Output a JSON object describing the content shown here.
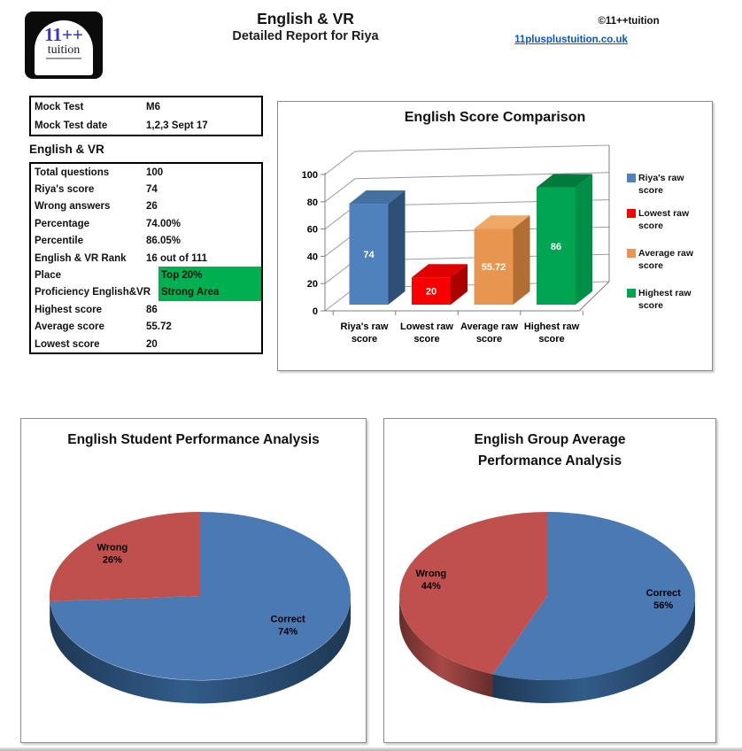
{
  "header": {
    "logo": {
      "line1": "11++",
      "line2": "tuition"
    },
    "title": "English & VR",
    "subtitle": "Detailed Report for Riya",
    "copyright": "©11++tuition",
    "website": "11plusplustuition.co.uk"
  },
  "mock_info": {
    "rows": [
      {
        "label": "Mock Test",
        "value": "M6",
        "highlight": false
      },
      {
        "label": "Mock Test date",
        "value": "1,2,3 Sept 17",
        "highlight": false
      }
    ]
  },
  "stats": {
    "section_title": "English & VR",
    "highlight_color": "#00B050",
    "rows": [
      {
        "label": "Total questions",
        "value": "100",
        "highlight": false
      },
      {
        "label": "Riya's score",
        "value": "74",
        "highlight": false
      },
      {
        "label": "Wrong answers",
        "value": "26",
        "highlight": false
      },
      {
        "label": "Percentage",
        "value": "74.00%",
        "highlight": false
      },
      {
        "label": "Percentile",
        "value": "86.05%",
        "highlight": false
      },
      {
        "label": "English & VR Rank",
        "value": "16 out of 111",
        "highlight": false
      },
      {
        "label": "Place",
        "value": "Top 20%",
        "highlight": true
      },
      {
        "label": "Proficiency English&VR",
        "value": "Strong Area",
        "highlight": true
      },
      {
        "label": "Highest score",
        "value": "86",
        "highlight": false
      },
      {
        "label": "Average score",
        "value": "55.72",
        "highlight": false
      },
      {
        "label": "Lowest score",
        "value": "20",
        "highlight": false
      }
    ]
  },
  "chart_data": [
    {
      "type": "bar",
      "projection": "3d",
      "title": "English Score Comparison",
      "categories": [
        "Riya's raw score",
        "Lowest raw score",
        "Average raw score",
        "Highest raw score"
      ],
      "series": [
        {
          "name": "Riya's raw score",
          "value": 74,
          "color": "#4F81BD",
          "color_top": "#44709F",
          "color_side": "#2F5076"
        },
        {
          "name": "Lowest raw score",
          "value": 20,
          "color": "#F80000",
          "color_top": "#E00000",
          "color_side": "#AA0000"
        },
        {
          "name": "Average raw score",
          "value": 55.72,
          "color": "#E8954F",
          "color_top": "#EFA964",
          "color_side": "#B06E33"
        },
        {
          "name": "Highest raw score",
          "value": 86,
          "color": "#00A551",
          "color_top": "#007B3C",
          "color_side": "#008F46"
        }
      ],
      "xlabel": "",
      "ylabel": "",
      "ylim": [
        0,
        100
      ],
      "yticks": [
        0,
        20,
        40,
        60,
        80,
        100
      ],
      "grid": true,
      "legend_position": "right",
      "data_labels": "inside-center-white"
    },
    {
      "type": "pie",
      "projection": "3d",
      "title": "English Student Performance Analysis",
      "start_angle": "top",
      "direction": "clockwise",
      "labels": "inside",
      "slices": [
        {
          "label": "Correct",
          "value": 74,
          "pct": "74%",
          "color": "#4A79B4",
          "side_color": "#2A4E75"
        },
        {
          "label": "Wrong",
          "value": 26,
          "pct": "26%",
          "color": "#C0504D",
          "side_color": "#8E3E3B"
        }
      ]
    },
    {
      "type": "pie",
      "projection": "3d",
      "title": "English Group Average Performance Analysis",
      "start_angle": "top",
      "direction": "clockwise",
      "labels": "inside",
      "slices": [
        {
          "label": "Correct",
          "value": 56,
          "pct": "56%",
          "color": "#4A79B4",
          "side_color": "#2A4E75"
        },
        {
          "label": "Wrong",
          "value": 44,
          "pct": "44%",
          "color": "#C0504D",
          "side_color": "#8E3E3B"
        }
      ]
    }
  ]
}
